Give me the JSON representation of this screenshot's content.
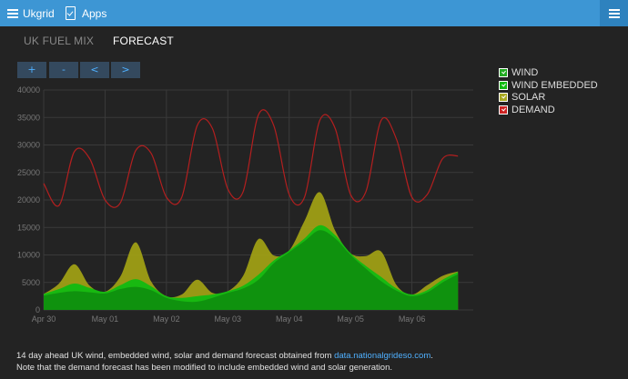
{
  "topbar": {
    "brand": "Ukgrid",
    "apps": "Apps"
  },
  "tabs": [
    {
      "label": "UK FUEL MIX"
    },
    {
      "label": "FORECAST"
    }
  ],
  "controls": {
    "zoom_in": "+",
    "zoom_out": "-",
    "prev": "<",
    "next": ">"
  },
  "legend": [
    {
      "label": "WIND",
      "color": "#22aa22"
    },
    {
      "label": "WIND EMBEDDED",
      "color": "#11bb11"
    },
    {
      "label": "SOLAR",
      "color": "#aaaa22"
    },
    {
      "label": "DEMAND",
      "color": "#cc2222"
    }
  ],
  "chart_data": {
    "type": "area",
    "ylim": [
      0,
      40000
    ],
    "yticks": [
      "0",
      "5000",
      "10000",
      "15000",
      "20000",
      "25000",
      "30000",
      "35000",
      "40000"
    ],
    "xticks": [
      "Apr 30",
      "May 01",
      "May 02",
      "May 03",
      "May 04",
      "May 05",
      "May 06"
    ],
    "x_days": [
      0,
      0.25,
      0.5,
      0.75,
      1,
      1.25,
      1.5,
      1.75,
      2,
      2.25,
      2.5,
      2.75,
      3,
      3.25,
      3.5,
      3.75,
      4,
      4.25,
      4.5,
      4.75,
      5,
      5.25,
      5.5,
      5.75,
      6,
      6.25,
      6.5,
      6.75
    ],
    "series": [
      {
        "name": "WIND",
        "color": "#0f8f0f",
        "values": [
          2600,
          3100,
          3400,
          3200,
          3000,
          3800,
          4200,
          3600,
          2200,
          1600,
          1500,
          2200,
          3100,
          3900,
          5500,
          8500,
          10500,
          12500,
          14500,
          13000,
          10000,
          7500,
          5200,
          3500,
          2500,
          3200,
          5000,
          6500
        ]
      },
      {
        "name": "WIND EMBEDDED",
        "color": "#11bb11",
        "values": [
          300,
          700,
          1400,
          800,
          300,
          700,
          1400,
          700,
          300,
          600,
          1000,
          600,
          300,
          500,
          900,
          500,
          300,
          500,
          900,
          600,
          300,
          500,
          800,
          400,
          300,
          400,
          500,
          400
        ]
      },
      {
        "name": "SOLAR",
        "color": "#9f9f15",
        "values": [
          0,
          1000,
          3500,
          400,
          0,
          1600,
          6700,
          900,
          0,
          600,
          3000,
          300,
          0,
          1800,
          6500,
          900,
          0,
          3200,
          6000,
          800,
          0,
          1800,
          4600,
          600,
          0,
          900,
          700,
          100
        ]
      },
      {
        "name": "DEMAND",
        "color": "#b31f1f",
        "values": [
          23000,
          19000,
          28800,
          27500,
          20000,
          19500,
          29000,
          28500,
          20500,
          20500,
          33500,
          33000,
          22000,
          21500,
          35500,
          33500,
          21000,
          20500,
          34500,
          33000,
          21000,
          21500,
          34500,
          31000,
          20500,
          21000,
          27500,
          28000
        ]
      }
    ]
  },
  "footer": {
    "line1_pre": "14 day ahead UK wind, embedded wind, solar and demand forecast obtained from ",
    "link": "data.nationalgrideso.com",
    "line1_post": ".",
    "line2": "Note that the demand forecast has been modified to include embedded wind and solar generation."
  }
}
